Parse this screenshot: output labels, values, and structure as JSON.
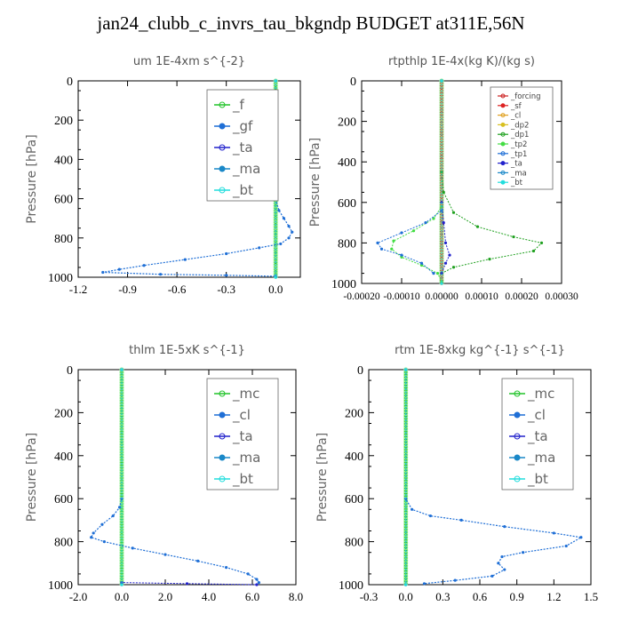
{
  "figure": {
    "title": "jan24_clubb_c_invrs_tau_bkgndp  BUDGET at311E,56N"
  },
  "chart_data": [
    {
      "type": "line",
      "title": "um   1E-4xm  s^{-2}",
      "ylabel": "Pressure [hPa]",
      "xlim": [
        -1.2,
        0.15
      ],
      "ylim": [
        1000,
        0
      ],
      "xticks": [
        "-1.2",
        "-0.9",
        "-0.6",
        "-0.3",
        "0.0"
      ],
      "xtick_values": [
        -1.2,
        -0.9,
        -0.6,
        -0.3,
        0.0
      ],
      "yticks": [
        "0",
        "200",
        "400",
        "600",
        "800",
        "1000"
      ],
      "ytick_values": [
        0,
        200,
        400,
        600,
        800,
        1000
      ],
      "legend_position": "top-right",
      "legend_style": "large",
      "series": [
        {
          "name": "_f",
          "color": "#22c42a",
          "width": 3.5,
          "points": [
            [
              0,
              0
            ],
            [
              0,
              1000
            ]
          ]
        },
        {
          "name": "_gf",
          "color": "#1f6fd6",
          "width": 1.2,
          "points": [
            [
              0,
              0
            ],
            [
              0,
              600
            ],
            [
              0.02,
              660
            ],
            [
              0.05,
              700
            ],
            [
              0.08,
              740
            ],
            [
              0.1,
              770
            ],
            [
              0.08,
              800
            ],
            [
              0.03,
              830
            ],
            [
              -0.1,
              850
            ],
            [
              -0.3,
              880
            ],
            [
              -0.55,
              910
            ],
            [
              -0.8,
              940
            ],
            [
              -0.95,
              960
            ],
            [
              -1.05,
              975
            ],
            [
              -0.7,
              985
            ],
            [
              -0.3,
              990
            ],
            [
              0,
              995
            ]
          ]
        },
        {
          "name": "_ta",
          "color": "#2222cc",
          "width": 1,
          "points": [
            [
              0,
              0
            ],
            [
              0,
              1000
            ]
          ]
        },
        {
          "name": "_ma",
          "color": "#1a88c8",
          "width": 1,
          "points": [
            [
              0,
              0
            ],
            [
              0,
              1000
            ]
          ]
        },
        {
          "name": "_bt",
          "color": "#22dddd",
          "width": 1,
          "points": [
            [
              0,
              0
            ],
            [
              0,
              1000
            ]
          ]
        }
      ]
    },
    {
      "type": "line",
      "title": "rtpthlp   1E-4x(kg K)/(kg s)",
      "ylabel": "Pressure [hPa]",
      "xlim": [
        -0.0002,
        0.0003
      ],
      "ylim": [
        1000,
        0
      ],
      "xticks": [
        "-0.00020",
        "-0.00010",
        "0.00000",
        "0.00010",
        "0.00020",
        "0.00030"
      ],
      "xtick_values": [
        -0.0002,
        -0.0001,
        0.0,
        0.0001,
        0.0002,
        0.0003
      ],
      "yticks": [
        "0",
        "200",
        "400",
        "600",
        "800",
        "1000"
      ],
      "ytick_values": [
        0,
        200,
        400,
        600,
        800,
        1000
      ],
      "legend_position": "top-right",
      "legend_style": "small",
      "series": [
        {
          "name": "_forcing",
          "color": "#cc2222",
          "width": 4,
          "points": [
            [
              0,
              0
            ],
            [
              0,
              1000
            ]
          ]
        },
        {
          "name": "_sf",
          "color": "#dd2222",
          "width": 1,
          "points": [
            [
              0,
              0
            ],
            [
              0,
              1000
            ]
          ]
        },
        {
          "name": "_cl",
          "color": "#e0a020",
          "width": 1,
          "points": [
            [
              0,
              0
            ],
            [
              0,
              1000
            ]
          ]
        },
        {
          "name": "_dp2",
          "color": "#d8c020",
          "width": 1,
          "points": [
            [
              0,
              0
            ],
            [
              0,
              1000
            ]
          ]
        },
        {
          "name": "_dp1",
          "color": "#1fa01f",
          "width": 1,
          "points": [
            [
              0,
              0
            ],
            [
              0,
              450
            ],
            [
              5e-06,
              550
            ],
            [
              3e-05,
              650
            ],
            [
              9e-05,
              720
            ],
            [
              0.00018,
              770
            ],
            [
              0.00025,
              800
            ],
            [
              0.00023,
              840
            ],
            [
              0.00012,
              880
            ],
            [
              3e-05,
              920
            ],
            [
              0,
              950
            ]
          ]
        },
        {
          "name": "_tp2",
          "color": "#44dd44",
          "width": 1,
          "points": [
            [
              0,
              0
            ],
            [
              0,
              620
            ],
            [
              -2e-05,
              680
            ],
            [
              -7e-05,
              740
            ],
            [
              -0.00012,
              790
            ],
            [
              -0.000125,
              830
            ],
            [
              -0.0001,
              870
            ],
            [
              -5e-05,
              910
            ],
            [
              -1e-05,
              950
            ],
            [
              0,
              990
            ]
          ]
        },
        {
          "name": "_tp1",
          "color": "#1f6fd6",
          "width": 1,
          "points": [
            [
              0,
              0
            ],
            [
              0,
              640
            ],
            [
              -4e-05,
              700
            ],
            [
              -0.0001,
              750
            ],
            [
              -0.00016,
              800
            ],
            [
              -0.00015,
              830
            ],
            [
              -0.0001,
              860
            ],
            [
              -5e-05,
              900
            ],
            [
              -2e-05,
              950
            ]
          ]
        },
        {
          "name": "_ta",
          "color": "#2222cc",
          "width": 1,
          "points": [
            [
              0,
              0
            ],
            [
              0,
              600
            ],
            [
              5e-06,
              700
            ],
            [
              1e-05,
              800
            ],
            [
              2e-05,
              860
            ],
            [
              1e-05,
              900
            ],
            [
              0,
              950
            ]
          ]
        },
        {
          "name": "_ma",
          "color": "#1a88c8",
          "width": 1,
          "points": [
            [
              0,
              0
            ],
            [
              0,
              1000
            ]
          ]
        },
        {
          "name": "_bt",
          "color": "#22dddd",
          "width": 1,
          "points": [
            [
              0,
              0
            ],
            [
              0,
              1000
            ]
          ]
        }
      ]
    },
    {
      "type": "line",
      "title": "thlm   1E-5xK  s^{-1}",
      "ylabel": "Pressure [hPa]",
      "xlim": [
        -2.0,
        8.0
      ],
      "ylim": [
        1000,
        0
      ],
      "xticks": [
        "-2.0",
        "0.0",
        "2.0",
        "4.0",
        "6.0",
        "8.0"
      ],
      "xtick_values": [
        -2.0,
        0.0,
        2.0,
        4.0,
        6.0,
        8.0
      ],
      "yticks": [
        "0",
        "200",
        "400",
        "600",
        "800",
        "1000"
      ],
      "ytick_values": [
        0,
        200,
        400,
        600,
        800,
        1000
      ],
      "legend_position": "top-right",
      "legend_style": "large",
      "series": [
        {
          "name": "_mc",
          "color": "#22c42a",
          "width": 3.5,
          "points": [
            [
              0,
              0
            ],
            [
              0,
              1000
            ]
          ]
        },
        {
          "name": "_cl",
          "color": "#1f6fd6",
          "width": 1.2,
          "points": [
            [
              0,
              0
            ],
            [
              0,
              600
            ],
            [
              -0.1,
              640
            ],
            [
              -0.4,
              680
            ],
            [
              -0.9,
              720
            ],
            [
              -1.3,
              760
            ],
            [
              -1.4,
              780
            ],
            [
              -0.8,
              800
            ],
            [
              0.5,
              830
            ],
            [
              2.0,
              860
            ],
            [
              3.5,
              890
            ],
            [
              4.8,
              920
            ],
            [
              5.8,
              950
            ],
            [
              6.2,
              975
            ],
            [
              6.3,
              990
            ]
          ]
        },
        {
          "name": "_ta",
          "color": "#2222cc",
          "width": 1,
          "points": [
            [
              0,
              0
            ],
            [
              0,
              990
            ],
            [
              3.0,
              995
            ],
            [
              6.2,
              1000
            ]
          ]
        },
        {
          "name": "_ma",
          "color": "#1a88c8",
          "width": 1,
          "points": [
            [
              0,
              0
            ],
            [
              0,
              1000
            ]
          ]
        },
        {
          "name": "_bt",
          "color": "#22dddd",
          "width": 1,
          "points": [
            [
              0,
              0
            ],
            [
              0,
              1000
            ]
          ]
        }
      ]
    },
    {
      "type": "line",
      "title": "rtm   1E-8xkg  kg^{-1}  s^{-1}",
      "ylabel": "Pressure [hPa]",
      "xlim": [
        -0.3,
        1.5
      ],
      "ylim": [
        1000,
        0
      ],
      "xticks": [
        "-0.3",
        "0.0",
        "0.3",
        "0.6",
        "0.9",
        "1.2",
        "1.5"
      ],
      "xtick_values": [
        -0.3,
        0.0,
        0.3,
        0.6,
        0.9,
        1.2,
        1.5
      ],
      "yticks": [
        "0",
        "200",
        "400",
        "600",
        "800",
        "1000"
      ],
      "ytick_values": [
        0,
        200,
        400,
        600,
        800,
        1000
      ],
      "legend_position": "top-right",
      "legend_style": "large",
      "series": [
        {
          "name": "_mc",
          "color": "#22c42a",
          "width": 3.5,
          "points": [
            [
              0,
              0
            ],
            [
              0,
              1000
            ]
          ]
        },
        {
          "name": "_cl",
          "color": "#1f6fd6",
          "width": 1.2,
          "points": [
            [
              0,
              0
            ],
            [
              0,
              600
            ],
            [
              0.05,
              650
            ],
            [
              0.2,
              680
            ],
            [
              0.45,
              700
            ],
            [
              0.8,
              730
            ],
            [
              1.2,
              760
            ],
            [
              1.42,
              780
            ],
            [
              1.3,
              820
            ],
            [
              0.95,
              850
            ],
            [
              0.78,
              870
            ],
            [
              0.75,
              900
            ],
            [
              0.8,
              930
            ],
            [
              0.7,
              960
            ],
            [
              0.4,
              980
            ],
            [
              0.15,
              995
            ]
          ]
        },
        {
          "name": "_ta",
          "color": "#2222cc",
          "width": 1,
          "points": [
            [
              0,
              0
            ],
            [
              0,
              1000
            ]
          ]
        },
        {
          "name": "_ma",
          "color": "#1a88c8",
          "width": 1,
          "points": [
            [
              0,
              0
            ],
            [
              0,
              1000
            ]
          ]
        },
        {
          "name": "_bt",
          "color": "#22dddd",
          "width": 1,
          "points": [
            [
              0,
              0
            ],
            [
              0,
              1000
            ]
          ]
        }
      ]
    }
  ]
}
